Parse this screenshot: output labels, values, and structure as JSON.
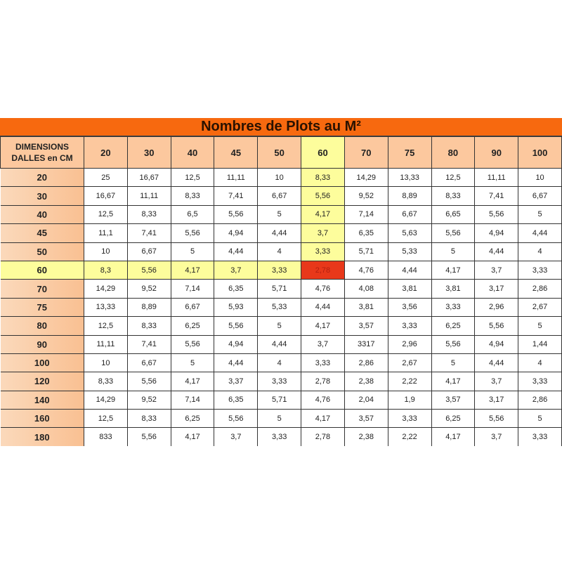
{
  "title": "Nombres de Plots au M²",
  "corner_label_line1": "DIMENSIONS",
  "corner_label_line2": "DALLES en CM",
  "columns": [
    "20",
    "30",
    "40",
    "45",
    "50",
    "60",
    "70",
    "75",
    "80",
    "90",
    "100"
  ],
  "highlight_column": "60",
  "highlight_row": "60",
  "colors": {
    "title_bar": "#f7690f",
    "header": "#fcc89e",
    "highlight": "#fdfd9c",
    "intersection": "#e8381a"
  },
  "rows": [
    {
      "label": "20",
      "values": [
        "25",
        "16,67",
        "12,5",
        "11,11",
        "10",
        "8,33",
        "14,29",
        "13,33",
        "12,5",
        "11,11",
        "10"
      ]
    },
    {
      "label": "30",
      "values": [
        "16,67",
        "11,11",
        "8,33",
        "7,41",
        "6,67",
        "5,56",
        "9,52",
        "8,89",
        "8,33",
        "7,41",
        "6,67"
      ]
    },
    {
      "label": "40",
      "values": [
        "12,5",
        "8,33",
        "6,5",
        "5,56",
        "5",
        "4,17",
        "7,14",
        "6,67",
        "6,65",
        "5,56",
        "5"
      ]
    },
    {
      "label": "45",
      "values": [
        "11,1",
        "7,41",
        "5,56",
        "4,94",
        "4,44",
        "3,7",
        "6,35",
        "5,63",
        "5,56",
        "4,94",
        "4,44"
      ]
    },
    {
      "label": "50",
      "values": [
        "10",
        "6,67",
        "5",
        "4,44",
        "4",
        "3,33",
        "5,71",
        "5,33",
        "5",
        "4,44",
        "4"
      ]
    },
    {
      "label": "60",
      "values": [
        "8,3",
        "5,56",
        "4,17",
        "3,7",
        "3,33",
        "2,78",
        "4,76",
        "4,44",
        "4,17",
        "3,7",
        "3,33"
      ]
    },
    {
      "label": "70",
      "values": [
        "14,29",
        "9,52",
        "7,14",
        "6,35",
        "5,71",
        "4,76",
        "4,08",
        "3,81",
        "3,81",
        "3,17",
        "2,86"
      ]
    },
    {
      "label": "75",
      "values": [
        "13,33",
        "8,89",
        "6,67",
        "5,93",
        "5,33",
        "4,44",
        "3,81",
        "3,56",
        "3,33",
        "2,96",
        "2,67"
      ]
    },
    {
      "label": "80",
      "values": [
        "12,5",
        "8,33",
        "6,25",
        "5,56",
        "5",
        "4,17",
        "3,57",
        "3,33",
        "6,25",
        "5,56",
        "5"
      ]
    },
    {
      "label": "90",
      "values": [
        "11,11",
        "7,41",
        "5,56",
        "4,94",
        "4,44",
        "3,7",
        "3317",
        "2,96",
        "5,56",
        "4,94",
        "1,44"
      ]
    },
    {
      "label": "100",
      "values": [
        "10",
        "6,67",
        "5",
        "4,44",
        "4",
        "3,33",
        "2,86",
        "2,67",
        "5",
        "4,44",
        "4"
      ]
    },
    {
      "label": "120",
      "values": [
        "8,33",
        "5,56",
        "4,17",
        "3,37",
        "3,33",
        "2,78",
        "2,38",
        "2,22",
        "4,17",
        "3,7",
        "3,33"
      ]
    },
    {
      "label": "140",
      "values": [
        "14,29",
        "9,52",
        "7,14",
        "6,35",
        "5,71",
        "4,76",
        "2,04",
        "1,9",
        "3,57",
        "3,17",
        "2,86"
      ]
    },
    {
      "label": "160",
      "values": [
        "12,5",
        "8,33",
        "6,25",
        "5,56",
        "5",
        "4,17",
        "3,57",
        "3,33",
        "6,25",
        "5,56",
        "5"
      ]
    },
    {
      "label": "180",
      "values": [
        "833",
        "5,56",
        "4,17",
        "3,7",
        "3,33",
        "2,78",
        "2,38",
        "2,22",
        "4,17",
        "3,7",
        "3,33"
      ]
    }
  ]
}
